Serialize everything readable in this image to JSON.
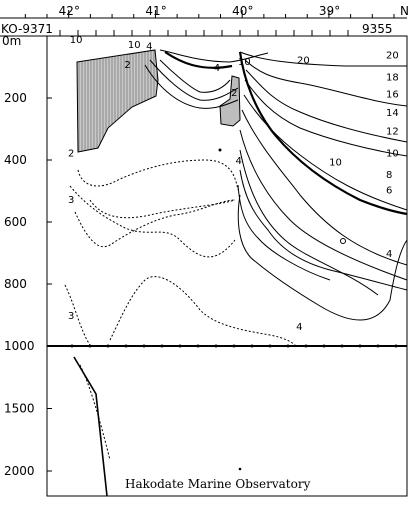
{
  "chart_data": {
    "type": "contour",
    "top_axis": {
      "tick_labels": [
        "42°",
        "41°",
        "40°",
        "39°",
        "N"
      ],
      "tick_values": [
        42,
        41,
        40,
        39
      ]
    },
    "stations": {
      "left": "KO-9371",
      "right": "9355"
    },
    "y_axis": {
      "unit_label": "0m",
      "upper_panel": {
        "tick_labels": [
          "200",
          "400",
          "600",
          "800",
          "1000"
        ],
        "tick_values": [
          200,
          400,
          600,
          800,
          1000
        ],
        "range": [
          0,
          1000
        ]
      },
      "lower_panel": {
        "tick_labels": [
          "1500",
          "2000"
        ],
        "tick_values": [
          1500,
          2000
        ],
        "range": [
          1000,
          2200
        ]
      }
    },
    "contour_levels": [
      2,
      3,
      4,
      6,
      8,
      10,
      12,
      14,
      16,
      18,
      20
    ],
    "contour_labels": {
      "right_edge": [
        {
          "text": "20",
          "depth": 60
        },
        {
          "text": "18",
          "depth": 130
        },
        {
          "text": "16",
          "depth": 185
        },
        {
          "text": "14",
          "depth": 245
        },
        {
          "text": "12",
          "depth": 305
        },
        {
          "text": "10",
          "depth": 375
        },
        {
          "text": "8",
          "depth": 445
        },
        {
          "text": "6",
          "depth": 495
        },
        {
          "text": "4",
          "depth": 700
        }
      ],
      "interior": [
        {
          "text": "10",
          "lat": 41.93,
          "depth": 10
        },
        {
          "text": "10",
          "lat": 41.26,
          "depth": 25
        },
        {
          "text": "4",
          "lat": 41.05,
          "depth": 30
        },
        {
          "text": "2",
          "lat": 41.3,
          "depth": 90
        },
        {
          "text": "4",
          "lat": 40.27,
          "depth": 100
        },
        {
          "text": "10",
          "lat": 39.99,
          "depth": 80
        },
        {
          "text": "20",
          "lat": 39.31,
          "depth": 75
        },
        {
          "text": "2",
          "lat": 40.07,
          "depth": 180
        },
        {
          "text": "10",
          "lat": 38.94,
          "depth": 405
        },
        {
          "text": "2",
          "lat": 41.95,
          "depth": 375
        },
        {
          "text": "3",
          "lat": 41.95,
          "depth": 525
        },
        {
          "text": "4",
          "lat": 40.02,
          "depth": 400
        },
        {
          "text": "4",
          "lat": 39.32,
          "depth": 935
        },
        {
          "text": "3",
          "lat": 41.95,
          "depth": 900
        }
      ]
    },
    "credit": "Hakodate Marine Observatory"
  }
}
